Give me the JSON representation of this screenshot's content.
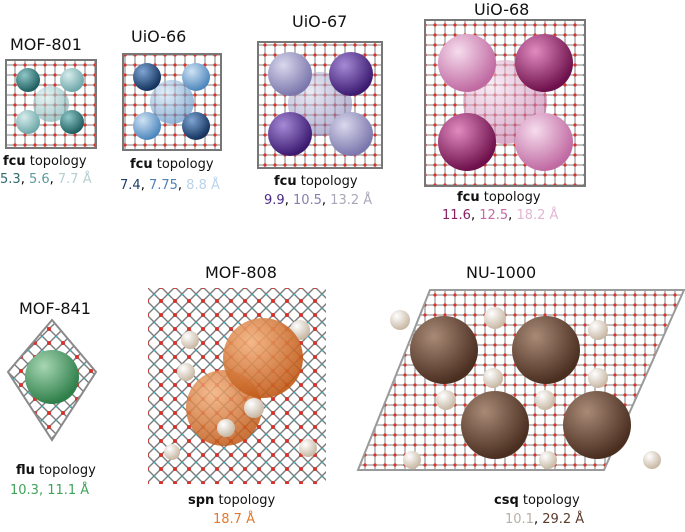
{
  "colors": {
    "framework_gray": "#8a8a8a",
    "oxygen_red": "#d8322a",
    "metal_cyan": "#3ab8c8"
  },
  "panels": [
    {
      "id": "mof801",
      "name": "MOF-801",
      "topology": "fcu",
      "topology_suffix": " topology",
      "pores": [
        {
          "text": "5.3",
          "color": "#2e6b6c"
        },
        {
          "text": "5.6",
          "color": "#5e9aa0"
        },
        {
          "text": "7.7 Å",
          "color": "#b6cfd1"
        }
      ]
    },
    {
      "id": "uio66",
      "name": "UiO-66",
      "topology": "fcu",
      "topology_suffix": " topology",
      "pores": [
        {
          "text": "7.4",
          "color": "#1f3f6e"
        },
        {
          "text": "7.75",
          "color": "#4f83b8"
        },
        {
          "text": "8.8 Å",
          "color": "#b9d3ea"
        }
      ]
    },
    {
      "id": "uio67",
      "name": "UiO-67",
      "topology": "fcu",
      "topology_suffix": " topology",
      "pores": [
        {
          "text": "9.9",
          "color": "#4b2a86"
        },
        {
          "text": "10.5",
          "color": "#8680b0"
        },
        {
          "text": "13.2 Å",
          "color": "#a8a8b8"
        }
      ]
    },
    {
      "id": "uio68",
      "name": "UiO-68",
      "topology": "fcu",
      "topology_suffix": " topology",
      "pores": [
        {
          "text": "11.6",
          "color": "#8a1f62"
        },
        {
          "text": "12.5",
          "color": "#c56aa6"
        },
        {
          "text": "18.2 Å",
          "color": "#e3b6d4"
        }
      ]
    },
    {
      "id": "mof841",
      "name": "MOF-841",
      "topology": "flu",
      "topology_suffix": " topology",
      "pores": [
        {
          "text": "10.3",
          "color": "#3fa35a"
        },
        {
          "text": "11.1 Å",
          "color": "#3fa35a"
        }
      ]
    },
    {
      "id": "mof808",
      "name": "MOF-808",
      "topology": "spn",
      "topology_suffix": " topology",
      "pores": [
        {
          "text": "18.7 Å",
          "color": "#e2792e"
        }
      ]
    },
    {
      "id": "nu1000",
      "name": "NU-1000",
      "topology": "csq",
      "topology_suffix": " topology",
      "pores": [
        {
          "text": "10.1",
          "color": "#b8b0a8"
        },
        {
          "text": "29.2 Å",
          "color": "#5a3a2a"
        }
      ]
    }
  ]
}
